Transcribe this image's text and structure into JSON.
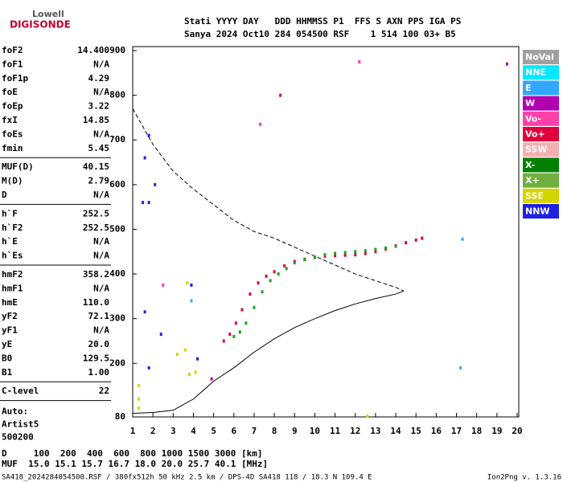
{
  "logo": {
    "top": "Lowell",
    "bottom": "DIGISONDE"
  },
  "header": {
    "row1": "Stati YYYY DAY   DDD HHMMSS P1  FFS S AXN PPS IGA PS",
    "row2": "Sanya 2024 Oct10 284 054500 RSF    1 514 100 03+ B5"
  },
  "params": [
    [
      [
        "foF2",
        "14.400"
      ],
      [
        "foF1",
        "N/A"
      ],
      [
        "foF1p",
        "4.29"
      ],
      [
        "foE",
        "N/A"
      ],
      [
        "foEp",
        "3.22"
      ],
      [
        "fxI",
        "14.85"
      ],
      [
        "foEs",
        "N/A"
      ],
      [
        "fmin",
        "5.45"
      ]
    ],
    [
      [
        "MUF(D)",
        "40.15"
      ],
      [
        "M(D)",
        "2.79"
      ],
      [
        "D",
        "N/A"
      ]
    ],
    [
      [
        "h`F",
        "252.5"
      ],
      [
        "h`F2",
        "252.5"
      ],
      [
        "h`E",
        "N/A"
      ],
      [
        "h`Es",
        "N/A"
      ]
    ],
    [
      [
        "hmF2",
        "358.2"
      ],
      [
        "hmF1",
        "N/A"
      ],
      [
        "hmE",
        "110.0"
      ],
      [
        "yF2",
        "72.1"
      ],
      [
        "yF1",
        "N/A"
      ],
      [
        "yE",
        "20.0"
      ],
      [
        "B0",
        "129.5"
      ],
      [
        "B1",
        "1.00"
      ]
    ],
    [
      [
        "C-level",
        "22"
      ]
    ]
  ],
  "auto": [
    "Auto:",
    "Artist5",
    "500200"
  ],
  "muf_table": {
    "row1": "D     100  200  400  600  800 1000 1500 3000 [km]",
    "row2": "MUF  15.0 15.1 15.7 16.7 18.0 20.0 25.7 40.1 [MHz]"
  },
  "footer": {
    "left": "SA418_2024284054500.RSF / 380fx512h 50 kHz 2.5 km / DPS-4D SA418 118 / 18.3 N 109.4 E",
    "right": "Ion2Png v. 1.3.16"
  },
  "chart_data": {
    "type": "scatter",
    "xlim": [
      1,
      20
    ],
    "ylim": [
      80,
      900
    ],
    "xticks": [
      1,
      2,
      3,
      4,
      5,
      6,
      7,
      8,
      9,
      10,
      11,
      12,
      13,
      14,
      15,
      16,
      17,
      18,
      19,
      20
    ],
    "yticks": [
      80,
      200,
      300,
      400,
      500,
      600,
      700,
      800,
      900
    ],
    "grid": false,
    "legend": [
      {
        "name": "NoVal",
        "color": "#a0a0a0"
      },
      {
        "name": "NNE",
        "color": "#00e8ff"
      },
      {
        "name": "E",
        "color": "#30a8ff"
      },
      {
        "name": "W",
        "color": "#b000b0"
      },
      {
        "name": "Vo-",
        "color": "#ff40a8"
      },
      {
        "name": "Vo+",
        "color": "#e0003c"
      },
      {
        "name": "SSW",
        "color": "#f4b0b0"
      },
      {
        "name": "X-",
        "color": "#008000"
      },
      {
        "name": "X+",
        "color": "#70b040"
      },
      {
        "name": "SSE",
        "color": "#d4d400"
      },
      {
        "name": "NNW",
        "color": "#2020e0"
      }
    ],
    "series": [
      {
        "name": "Vo+",
        "color": "#e0003c",
        "x": [
          5.5,
          5.8,
          6.1,
          6.4,
          6.8,
          7.2,
          7.6,
          8,
          8.5,
          9,
          9.5,
          10,
          10.5,
          11,
          11.5,
          12,
          12.5,
          13,
          13.5,
          14,
          14.5,
          15,
          15.3
        ],
        "y": [
          250,
          265,
          290,
          320,
          355,
          380,
          395,
          405,
          418,
          428,
          433,
          437,
          440,
          441,
          442,
          443,
          446,
          450,
          456,
          463,
          470,
          476,
          480
        ]
      },
      {
        "name": "X+",
        "color": "#22a022",
        "x": [
          6,
          6.3,
          6.6,
          7,
          7.4,
          7.8,
          8.2,
          8.6,
          9,
          9.5,
          10,
          10.5,
          11,
          11.5,
          12,
          12.5,
          13,
          13.5,
          14
        ],
        "y": [
          260,
          270,
          290,
          325,
          360,
          385,
          400,
          412,
          425,
          432,
          438,
          443,
          446,
          448,
          450,
          452,
          455,
          458,
          462
        ]
      },
      {
        "name": "NNW",
        "color": "#2020e0",
        "x": [
          1.8,
          1.6,
          2.1,
          1.8,
          1.5,
          1.6,
          1.8,
          2.4,
          3.9,
          4.2
        ],
        "y": [
          710,
          660,
          600,
          560,
          560,
          315,
          190,
          265,
          375,
          210
        ]
      },
      {
        "name": "SSE",
        "color": "#d4d400",
        "x": [
          1.3,
          1.3,
          1.3,
          3.7,
          3.6,
          3.2,
          3.8,
          4.1,
          12.6
        ],
        "y": [
          150,
          120,
          100,
          380,
          230,
          220,
          175,
          180,
          82
        ]
      },
      {
        "name": "E",
        "color": "#30a8ff",
        "x": [
          17.3,
          17.2,
          3.9
        ],
        "y": [
          478,
          190,
          340
        ]
      },
      {
        "name": "W",
        "color": "#b000b0",
        "x": [
          19.5,
          8.3,
          4.9
        ],
        "y": [
          870,
          800,
          165
        ]
      },
      {
        "name": "Vo-",
        "color": "#ff40a8",
        "x": [
          7.3,
          12.2,
          2.5
        ],
        "y": [
          735,
          875,
          375
        ]
      }
    ],
    "lines": [
      {
        "style": "dashed",
        "x": [
          1,
          1.5,
          2,
          3,
          4,
          5,
          6,
          7,
          8,
          9,
          10,
          11,
          12,
          13,
          14,
          14.4
        ],
        "y": [
          770,
          730,
          690,
          630,
          590,
          555,
          520,
          495,
          480,
          460,
          440,
          420,
          400,
          385,
          370,
          362
        ]
      },
      {
        "style": "solid",
        "x": [
          1,
          2,
          3,
          4,
          5,
          6,
          7,
          8,
          9,
          10,
          11,
          12,
          13,
          14,
          14.4
        ],
        "y": [
          88,
          90,
          95,
          120,
          160,
          190,
          225,
          255,
          280,
          300,
          318,
          333,
          345,
          355,
          362
        ]
      }
    ]
  }
}
